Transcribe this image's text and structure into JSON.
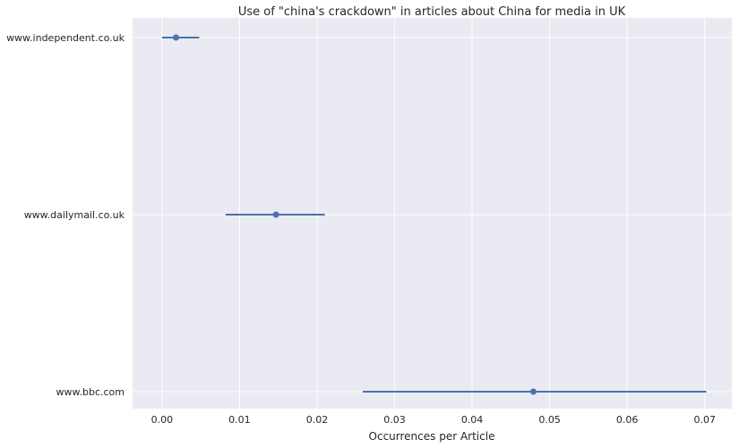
{
  "chart_data": {
    "type": "scatter",
    "title": "Use of \"china's crackdown\" in articles about China for media in UK",
    "xlabel": "Occurrences per Article",
    "ylabel": "",
    "xlim": [
      -0.0038,
      0.0735
    ],
    "xticks": [
      "0.00",
      "0.01",
      "0.02",
      "0.03",
      "0.04",
      "0.05",
      "0.06",
      "0.07"
    ],
    "xtick_values": [
      0.0,
      0.01,
      0.02,
      0.03,
      0.04,
      0.05,
      0.06,
      0.07
    ],
    "grid": true,
    "categories": [
      "www.independent.co.uk",
      "www.dailymail.co.uk",
      "www.bbc.com"
    ],
    "series": [
      {
        "values": [
          0.0018,
          0.0147,
          0.0479
        ],
        "ci_low": [
          0.0,
          0.0082,
          0.0259
        ],
        "ci_high": [
          0.0048,
          0.021,
          0.0702
        ]
      }
    ]
  },
  "colors": {
    "background": "#eaeaf2",
    "grid": "#ffffff",
    "series": "#4c72b0",
    "text": "#262626"
  }
}
